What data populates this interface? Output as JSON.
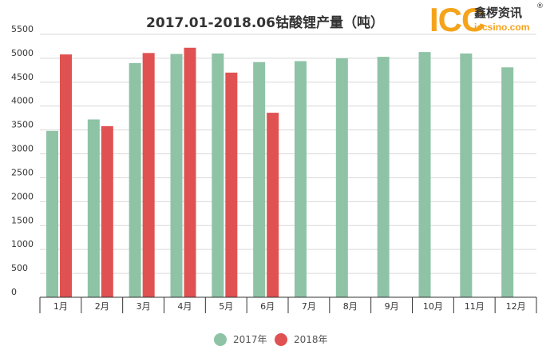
{
  "colors": {
    "series_2017": "#8ec3a6",
    "series_2018": "#e05252",
    "grid": "#d9d9d9",
    "axis": "#333333"
  },
  "logo": {
    "mark": "ICC",
    "name": "鑫椤资讯",
    "registered": "®",
    "url": "iccsino.com"
  },
  "chart_data": {
    "type": "bar",
    "title": "2017.01-2018.06钴酸锂产量（吨）",
    "categories": [
      "1月",
      "2月",
      "3月",
      "4月",
      "5月",
      "6月",
      "7月",
      "8月",
      "9月",
      "10月",
      "11月",
      "12月"
    ],
    "series": [
      {
        "name": "2017年",
        "values": [
          3480,
          3720,
          4900,
          5090,
          5100,
          4920,
          4940,
          5000,
          5030,
          5130,
          5100,
          4810
        ]
      },
      {
        "name": "2018年",
        "values": [
          5080,
          3580,
          5110,
          5220,
          4700,
          3860,
          null,
          null,
          null,
          null,
          null,
          null
        ]
      }
    ],
    "ylim": [
      0,
      5500
    ],
    "yticks": [
      0,
      500,
      1000,
      1500,
      2000,
      2500,
      3000,
      3500,
      4000,
      4500,
      5000,
      5500
    ],
    "grid": true,
    "legend_position": "bottom"
  }
}
